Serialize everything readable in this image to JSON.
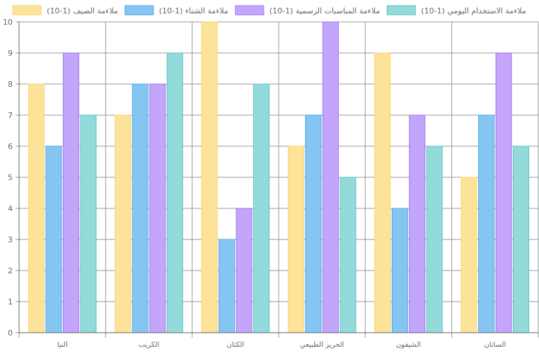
{
  "chart_data": {
    "type": "bar",
    "categories": [
      "النيا",
      "الكريب",
      "الكتان",
      "الحرير الطبيعي",
      "الشيفون",
      "الساتان"
    ],
    "series": [
      {
        "name": "ملاءمة الصيف (1-10)",
        "values": [
          8,
          7,
          10,
          6,
          9,
          5
        ],
        "fill": "#fde39a",
        "stroke": "#f8d46c"
      },
      {
        "name": "ملاءمة الشتاء (1-10)",
        "values": [
          6,
          8,
          3,
          7,
          4,
          7
        ],
        "fill": "#85c5f2",
        "stroke": "#4fa6e4"
      },
      {
        "name": "ملاءمة المناسبات الرسمية (1-10)",
        "values": [
          9,
          8,
          4,
          10,
          7,
          9
        ],
        "fill": "#c3a6fb",
        "stroke": "#9c77ee"
      },
      {
        "name": "ملاءمة الاستخدام اليومي (1-10)",
        "values": [
          7,
          9,
          8,
          5,
          6,
          6
        ],
        "fill": "#93dbdb",
        "stroke": "#5cc2c2"
      }
    ],
    "yticks": [
      "0",
      "1",
      "2",
      "3",
      "4",
      "5",
      "6",
      "7",
      "8",
      "9",
      "10"
    ],
    "ylim": [
      0,
      10
    ],
    "grid": true,
    "legend_position": "top",
    "colors": {
      "grid": "#9a9a9a",
      "axis": "#666666",
      "text": "#666666"
    }
  }
}
